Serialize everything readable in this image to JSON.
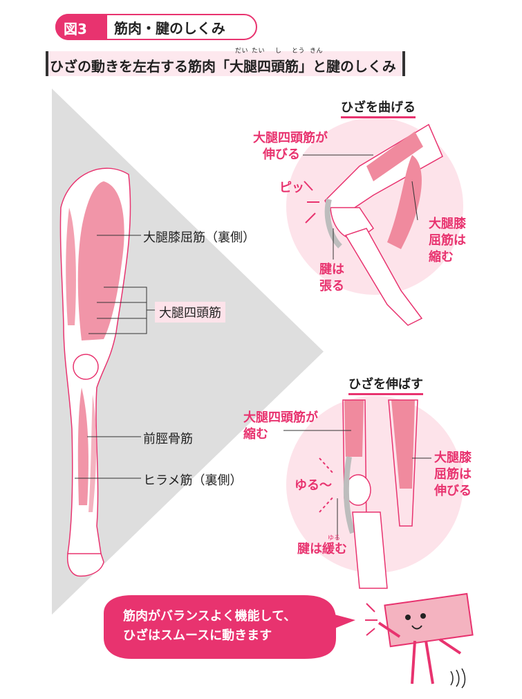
{
  "header": {
    "badge": "図3",
    "title": "筋肉・腱のしくみ"
  },
  "subtitle": {
    "text": "ひざの動きを左右する筋肉「大腿四頭筋」と腱のしくみ",
    "ruby": [
      "だい",
      "たい",
      "し",
      "とう",
      "きん"
    ]
  },
  "leg_labels": {
    "hamstrings": "大腿膝屈筋（裏側）",
    "quadriceps": "大腿四頭筋",
    "tibialis": "前脛骨筋",
    "soleus": "ヒラメ筋（裏側）"
  },
  "bend_panel": {
    "title": "ひざを曲げる",
    "quad_line1": "大腿四頭筋が",
    "quad_line2": "伸びる",
    "sound": "ピッ",
    "tendon_line1": "腱は",
    "tendon_line2": "張る",
    "ham_line1": "大腿膝",
    "ham_line2": "屈筋は",
    "ham_line3": "縮む"
  },
  "extend_panel": {
    "title": "ひざを伸ばす",
    "quad_line1": "大腿四頭筋が",
    "quad_line2": "縮む",
    "sound": "ゆる〜",
    "tendon": "腱は緩む",
    "tendon_ruby": "ゆる",
    "ham_line1": "大腿膝",
    "ham_line2": "屈筋は",
    "ham_line3": "伸びる"
  },
  "speech": {
    "line1": "筋肉がバランスよく機能して、",
    "line2": "ひざはスムースに動きます"
  },
  "colors": {
    "accent": "#e8336f",
    "muscle": "#f08a9e",
    "circle": "#fde3ea",
    "shade": "#dcdcdc"
  }
}
